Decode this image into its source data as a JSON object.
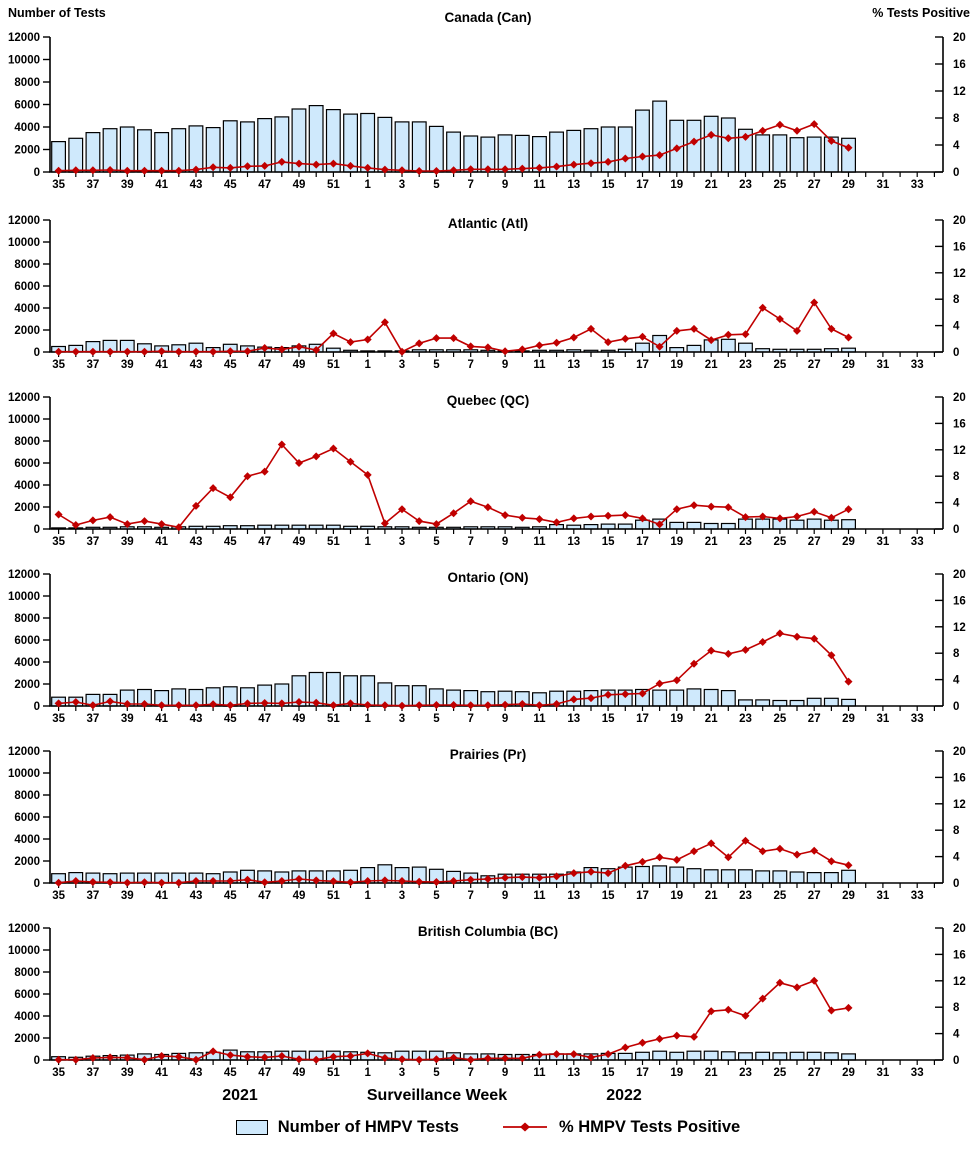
{
  "header": {
    "left_axis_title": "Number of Tests",
    "right_axis_title": "% Tests Positive"
  },
  "footer": {
    "year_left": "2021",
    "axis_label": "Surveillance Week",
    "year_right": "2022"
  },
  "legend": {
    "bars_label": "Number of HMPV Tests",
    "line_label": "% HMPV Tests Positive"
  },
  "colors": {
    "bar_fill": "#cfe9fc",
    "bar_stroke": "#000000",
    "line": "#c00000",
    "axis": "#000000"
  },
  "axes": {
    "left_ticks": [
      0,
      2000,
      4000,
      6000,
      8000,
      10000,
      12000
    ],
    "right_ticks": [
      0,
      4,
      8,
      12,
      16,
      20
    ],
    "left_max": 12000,
    "right_max": 20,
    "x_tick_every": 2
  },
  "x_categories": [
    "35",
    "36",
    "37",
    "38",
    "39",
    "40",
    "41",
    "42",
    "43",
    "44",
    "45",
    "46",
    "47",
    "48",
    "49",
    "50",
    "51",
    "52",
    "1",
    "2",
    "3",
    "4",
    "5",
    "6",
    "7",
    "8",
    "9",
    "10",
    "11",
    "12",
    "13",
    "14",
    "15",
    "16",
    "17",
    "18",
    "19",
    "20",
    "21",
    "22",
    "23",
    "24",
    "25",
    "26",
    "27",
    "28",
    "29",
    "30",
    "31",
    "32",
    "33",
    "34"
  ],
  "chart_data": [
    {
      "type": "bar",
      "title": "Canada (Can)",
      "xlabel": "Surveillance Week",
      "ylabel_left": "Number of Tests",
      "ylabel_right": "% Tests Positive",
      "ylim_left": [
        0,
        12000
      ],
      "ylim_right": [
        0,
        20
      ],
      "series": [
        {
          "name": "Number of HMPV Tests",
          "kind": "bar",
          "axis": "left",
          "values": [
            2700,
            3000,
            3500,
            3850,
            4000,
            3750,
            3500,
            3850,
            4100,
            3950,
            4550,
            4450,
            4750,
            4900,
            5600,
            5900,
            5550,
            5150,
            5200,
            4850,
            4450,
            4450,
            4050,
            3550,
            3200,
            3100,
            3300,
            3250,
            3150,
            3550,
            3700,
            3850,
            4000,
            4000,
            5500,
            6300,
            4600,
            4600,
            4950,
            4800,
            3800,
            3300,
            3300,
            3050,
            3100,
            3100,
            3000
          ]
        },
        {
          "name": "% HMPV Tests Positive",
          "kind": "line",
          "axis": "right",
          "values": [
            0.2,
            0.25,
            0.25,
            0.3,
            0.2,
            0.2,
            0.2,
            0.2,
            0.35,
            0.7,
            0.6,
            0.85,
            0.9,
            1.5,
            1.25,
            1.1,
            1.25,
            0.9,
            0.6,
            0.35,
            0.25,
            0.15,
            0.15,
            0.25,
            0.4,
            0.4,
            0.4,
            0.5,
            0.6,
            0.8,
            1.1,
            1.3,
            1.5,
            2.0,
            2.3,
            2.5,
            3.5,
            4.5,
            5.5,
            5.0,
            5.2,
            6.1,
            7.0,
            6.1,
            7.1,
            4.6,
            3.6
          ]
        }
      ]
    },
    {
      "type": "bar",
      "title": "Atlantic (Atl)",
      "ylim_left": [
        0,
        12000
      ],
      "ylim_right": [
        0,
        20
      ],
      "series": [
        {
          "name": "Number of HMPV Tests",
          "kind": "bar",
          "axis": "left",
          "values": [
            500,
            600,
            950,
            1050,
            1050,
            750,
            550,
            650,
            800,
            400,
            700,
            550,
            450,
            400,
            550,
            700,
            350,
            150,
            100,
            100,
            100,
            200,
            200,
            200,
            200,
            150,
            100,
            100,
            150,
            150,
            200,
            150,
            150,
            250,
            800,
            1500,
            400,
            600,
            1100,
            1150,
            800,
            300,
            250,
            250,
            250,
            300,
            350
          ]
        },
        {
          "name": "% HMPV Tests Positive",
          "kind": "line",
          "axis": "right",
          "values": [
            0.05,
            0.05,
            0.05,
            0.05,
            0.05,
            0.05,
            0.1,
            0.05,
            0.05,
            0.05,
            0.1,
            0.1,
            0.6,
            0.4,
            0.8,
            0.3,
            2.8,
            1.5,
            1.9,
            4.5,
            0.05,
            1.3,
            2.1,
            2.1,
            0.85,
            0.7,
            0.1,
            0.4,
            1.0,
            1.4,
            2.2,
            3.5,
            1.5,
            2.0,
            2.3,
            0.8,
            3.2,
            3.5,
            1.8,
            2.6,
            2.7,
            6.7,
            5.0,
            3.2,
            7.5,
            3.5,
            2.2
          ]
        }
      ]
    },
    {
      "type": "bar",
      "title": "Quebec (QC)",
      "ylim_left": [
        0,
        12000
      ],
      "ylim_right": [
        0,
        20
      ],
      "series": [
        {
          "name": "Number of HMPV Tests",
          "kind": "bar",
          "axis": "left",
          "values": [
            100,
            100,
            150,
            150,
            200,
            200,
            150,
            200,
            250,
            250,
            300,
            300,
            350,
            350,
            350,
            350,
            350,
            250,
            250,
            200,
            200,
            150,
            150,
            150,
            200,
            200,
            200,
            150,
            200,
            400,
            350,
            400,
            450,
            450,
            800,
            900,
            600,
            600,
            500,
            500,
            900,
            900,
            900,
            800,
            900,
            800,
            850
          ]
        },
        {
          "name": "% HMPV Tests Positive",
          "kind": "line",
          "axis": "right",
          "values": [
            2.2,
            0.6,
            1.3,
            1.8,
            0.75,
            1.2,
            0.75,
            0.25,
            3.5,
            6.2,
            4.8,
            8.0,
            8.7,
            12.8,
            10.0,
            11.0,
            12.2,
            10.2,
            8.2,
            0.85,
            3.0,
            1.2,
            0.75,
            2.4,
            4.2,
            3.3,
            2.1,
            1.7,
            1.5,
            1.0,
            1.6,
            1.9,
            2.0,
            2.1,
            1.6,
            0.7,
            3.0,
            3.6,
            3.4,
            3.3,
            1.8,
            1.9,
            1.6,
            1.9,
            2.6,
            1.7,
            3.0
          ]
        }
      ]
    },
    {
      "type": "bar",
      "title": "Ontario (ON)",
      "ylim_left": [
        0,
        12000
      ],
      "ylim_right": [
        0,
        20
      ],
      "series": [
        {
          "name": "Number of HMPV Tests",
          "kind": "bar",
          "axis": "left",
          "values": [
            800,
            800,
            1050,
            1050,
            1450,
            1500,
            1400,
            1550,
            1500,
            1650,
            1750,
            1650,
            1900,
            2000,
            2750,
            3050,
            3050,
            2750,
            2750,
            2100,
            1850,
            1850,
            1550,
            1450,
            1400,
            1300,
            1350,
            1300,
            1200,
            1350,
            1350,
            1400,
            1450,
            1450,
            1500,
            1450,
            1450,
            1550,
            1500,
            1400,
            550,
            550,
            500,
            500,
            700,
            700,
            600
          ]
        },
        {
          "name": "% HMPV Tests Positive",
          "kind": "line",
          "axis": "right",
          "values": [
            0.4,
            0.6,
            0.1,
            0.7,
            0.3,
            0.3,
            0.1,
            0.1,
            0.1,
            0.25,
            0.1,
            0.4,
            0.45,
            0.4,
            0.6,
            0.5,
            0.1,
            0.4,
            0.15,
            0.1,
            0.05,
            0.1,
            0.15,
            0.15,
            0.1,
            0.1,
            0.2,
            0.3,
            0.1,
            0.3,
            1.0,
            1.2,
            1.7,
            1.8,
            1.9,
            3.4,
            3.9,
            6.4,
            8.4,
            7.9,
            8.5,
            9.7,
            11.0,
            10.5,
            10.2,
            7.7,
            3.7
          ]
        }
      ]
    },
    {
      "type": "bar",
      "title": "Prairies (Pr)",
      "ylim_left": [
        0,
        12000
      ],
      "ylim_right": [
        0,
        20
      ],
      "series": [
        {
          "name": "Number of HMPV Tests",
          "kind": "bar",
          "axis": "left",
          "values": [
            850,
            950,
            900,
            850,
            900,
            900,
            900,
            900,
            900,
            850,
            1000,
            1150,
            1100,
            1000,
            1100,
            1100,
            1100,
            1150,
            1400,
            1650,
            1400,
            1450,
            1250,
            1050,
            900,
            650,
            800,
            800,
            800,
            800,
            1000,
            1400,
            1300,
            1450,
            1500,
            1550,
            1450,
            1300,
            1200,
            1200,
            1200,
            1100,
            1100,
            1000,
            950,
            950,
            1150
          ]
        },
        {
          "name": "% HMPV Tests Positive",
          "kind": "line",
          "axis": "right",
          "values": [
            0.05,
            0.3,
            0.15,
            0.1,
            0.05,
            0.1,
            0.05,
            0.05,
            0.3,
            0.3,
            0.3,
            0.5,
            0.1,
            0.3,
            0.6,
            0.4,
            0.25,
            0.1,
            0.3,
            0.4,
            0.3,
            0.2,
            0.15,
            0.3,
            0.5,
            0.6,
            0.8,
            0.9,
            0.8,
            1.0,
            1.5,
            1.7,
            1.5,
            2.6,
            3.2,
            3.9,
            3.5,
            4.8,
            6.0,
            3.9,
            6.4,
            4.8,
            5.2,
            4.3,
            4.9,
            3.3,
            2.7
          ]
        }
      ]
    },
    {
      "type": "bar",
      "title": "British Columbia (BC)",
      "ylim_left": [
        0,
        12000
      ],
      "ylim_right": [
        0,
        20
      ],
      "series": [
        {
          "name": "Number of HMPV Tests",
          "kind": "bar",
          "axis": "left",
          "values": [
            300,
            250,
            350,
            400,
            450,
            550,
            500,
            600,
            650,
            700,
            900,
            750,
            750,
            800,
            800,
            800,
            800,
            750,
            700,
            650,
            800,
            800,
            800,
            650,
            550,
            550,
            500,
            500,
            500,
            550,
            550,
            550,
            600,
            600,
            700,
            800,
            700,
            800,
            800,
            750,
            650,
            700,
            650,
            700,
            700,
            650,
            550
          ]
        },
        {
          "name": "% HMPV Tests Positive",
          "kind": "line",
          "axis": "right",
          "values": [
            0.05,
            0.05,
            0.3,
            0.4,
            0.35,
            0.05,
            0.6,
            0.5,
            0.05,
            1.3,
            0.75,
            0.5,
            0.4,
            0.6,
            0.1,
            0.05,
            0.5,
            0.6,
            1.0,
            0.3,
            0.1,
            0.05,
            0.1,
            0.35,
            0.05,
            0.25,
            0.25,
            0.25,
            0.8,
            0.9,
            0.9,
            0.4,
            0.9,
            1.9,
            2.6,
            3.2,
            3.7,
            3.5,
            7.4,
            7.6,
            6.7,
            9.3,
            11.7,
            11.0,
            12.0,
            7.5,
            7.9
          ]
        }
      ]
    }
  ]
}
